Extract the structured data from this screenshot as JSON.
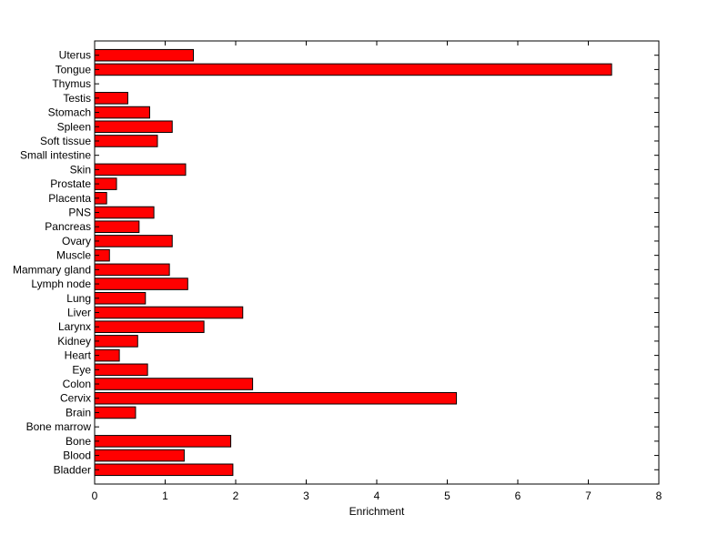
{
  "chart_data": {
    "type": "bar",
    "orientation": "horizontal",
    "title": "",
    "xlabel": "Enrichment",
    "ylabel": "",
    "xlim": [
      0,
      8
    ],
    "xticks": [
      0,
      1,
      2,
      3,
      4,
      5,
      6,
      7,
      8
    ],
    "grid": false,
    "bar_color": "#ff0000",
    "categories": [
      "Bladder",
      "Blood",
      "Bone",
      "Bone marrow",
      "Brain",
      "Cervix",
      "Colon",
      "Eye",
      "Heart",
      "Kidney",
      "Larynx",
      "Liver",
      "Lung",
      "Lymph node",
      "Mammary gland",
      "Muscle",
      "Ovary",
      "Pancreas",
      "PNS",
      "Placenta",
      "Prostate",
      "Skin",
      "Small intestine",
      "Soft tissue",
      "Spleen",
      "Stomach",
      "Testis",
      "Thymus",
      "Tongue",
      "Uterus"
    ],
    "values": [
      1.96,
      1.27,
      1.93,
      0,
      0.58,
      5.13,
      2.24,
      0.75,
      0.35,
      0.61,
      1.55,
      2.1,
      0.72,
      1.32,
      1.06,
      0.21,
      1.1,
      0.63,
      0.84,
      0.17,
      0.31,
      1.29,
      0,
      0.89,
      1.1,
      0.78,
      0.47,
      0,
      7.33,
      1.4
    ]
  }
}
